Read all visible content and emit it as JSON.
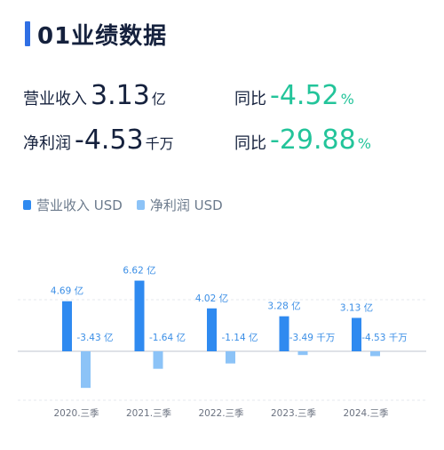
{
  "header": {
    "title": "01业绩数据"
  },
  "metrics": {
    "revenue": {
      "label": "营业收入",
      "value": "3.13",
      "unit": "亿"
    },
    "revenue_yoy": {
      "label": "同比",
      "value": "-4.52",
      "unit": "%"
    },
    "net_profit": {
      "label": "净利润",
      "value": "-4.53",
      "unit": "千万"
    },
    "net_profit_yoy": {
      "label": "同比",
      "value": "-29.88",
      "unit": "%"
    }
  },
  "colors": {
    "revenue": "#2f8af0",
    "net_profit": "#8cc3f7",
    "accent": "#2f6fe4",
    "positive_text": "#23c49a"
  },
  "chart_data": {
    "type": "bar",
    "categories": [
      "2020.三季",
      "2021.三季",
      "2022.三季",
      "2023.三季",
      "2024.三季"
    ],
    "series": [
      {
        "name": "营业收入 USD",
        "values": [
          4.69,
          6.62,
          4.02,
          3.28,
          3.13
        ],
        "labels": [
          "4.69 亿",
          "6.62 亿",
          "4.02 亿",
          "3.28 亿",
          "3.13 亿"
        ]
      },
      {
        "name": "净利润 USD",
        "values": [
          -3.43,
          -1.64,
          -1.14,
          -0.349,
          -0.453
        ],
        "labels": [
          "-3.43 亿",
          "-1.64 亿",
          "-1.14 亿",
          "-3.49 千万",
          "-4.53 千万"
        ]
      }
    ],
    "legend_position": "top-left",
    "grid": false
  }
}
